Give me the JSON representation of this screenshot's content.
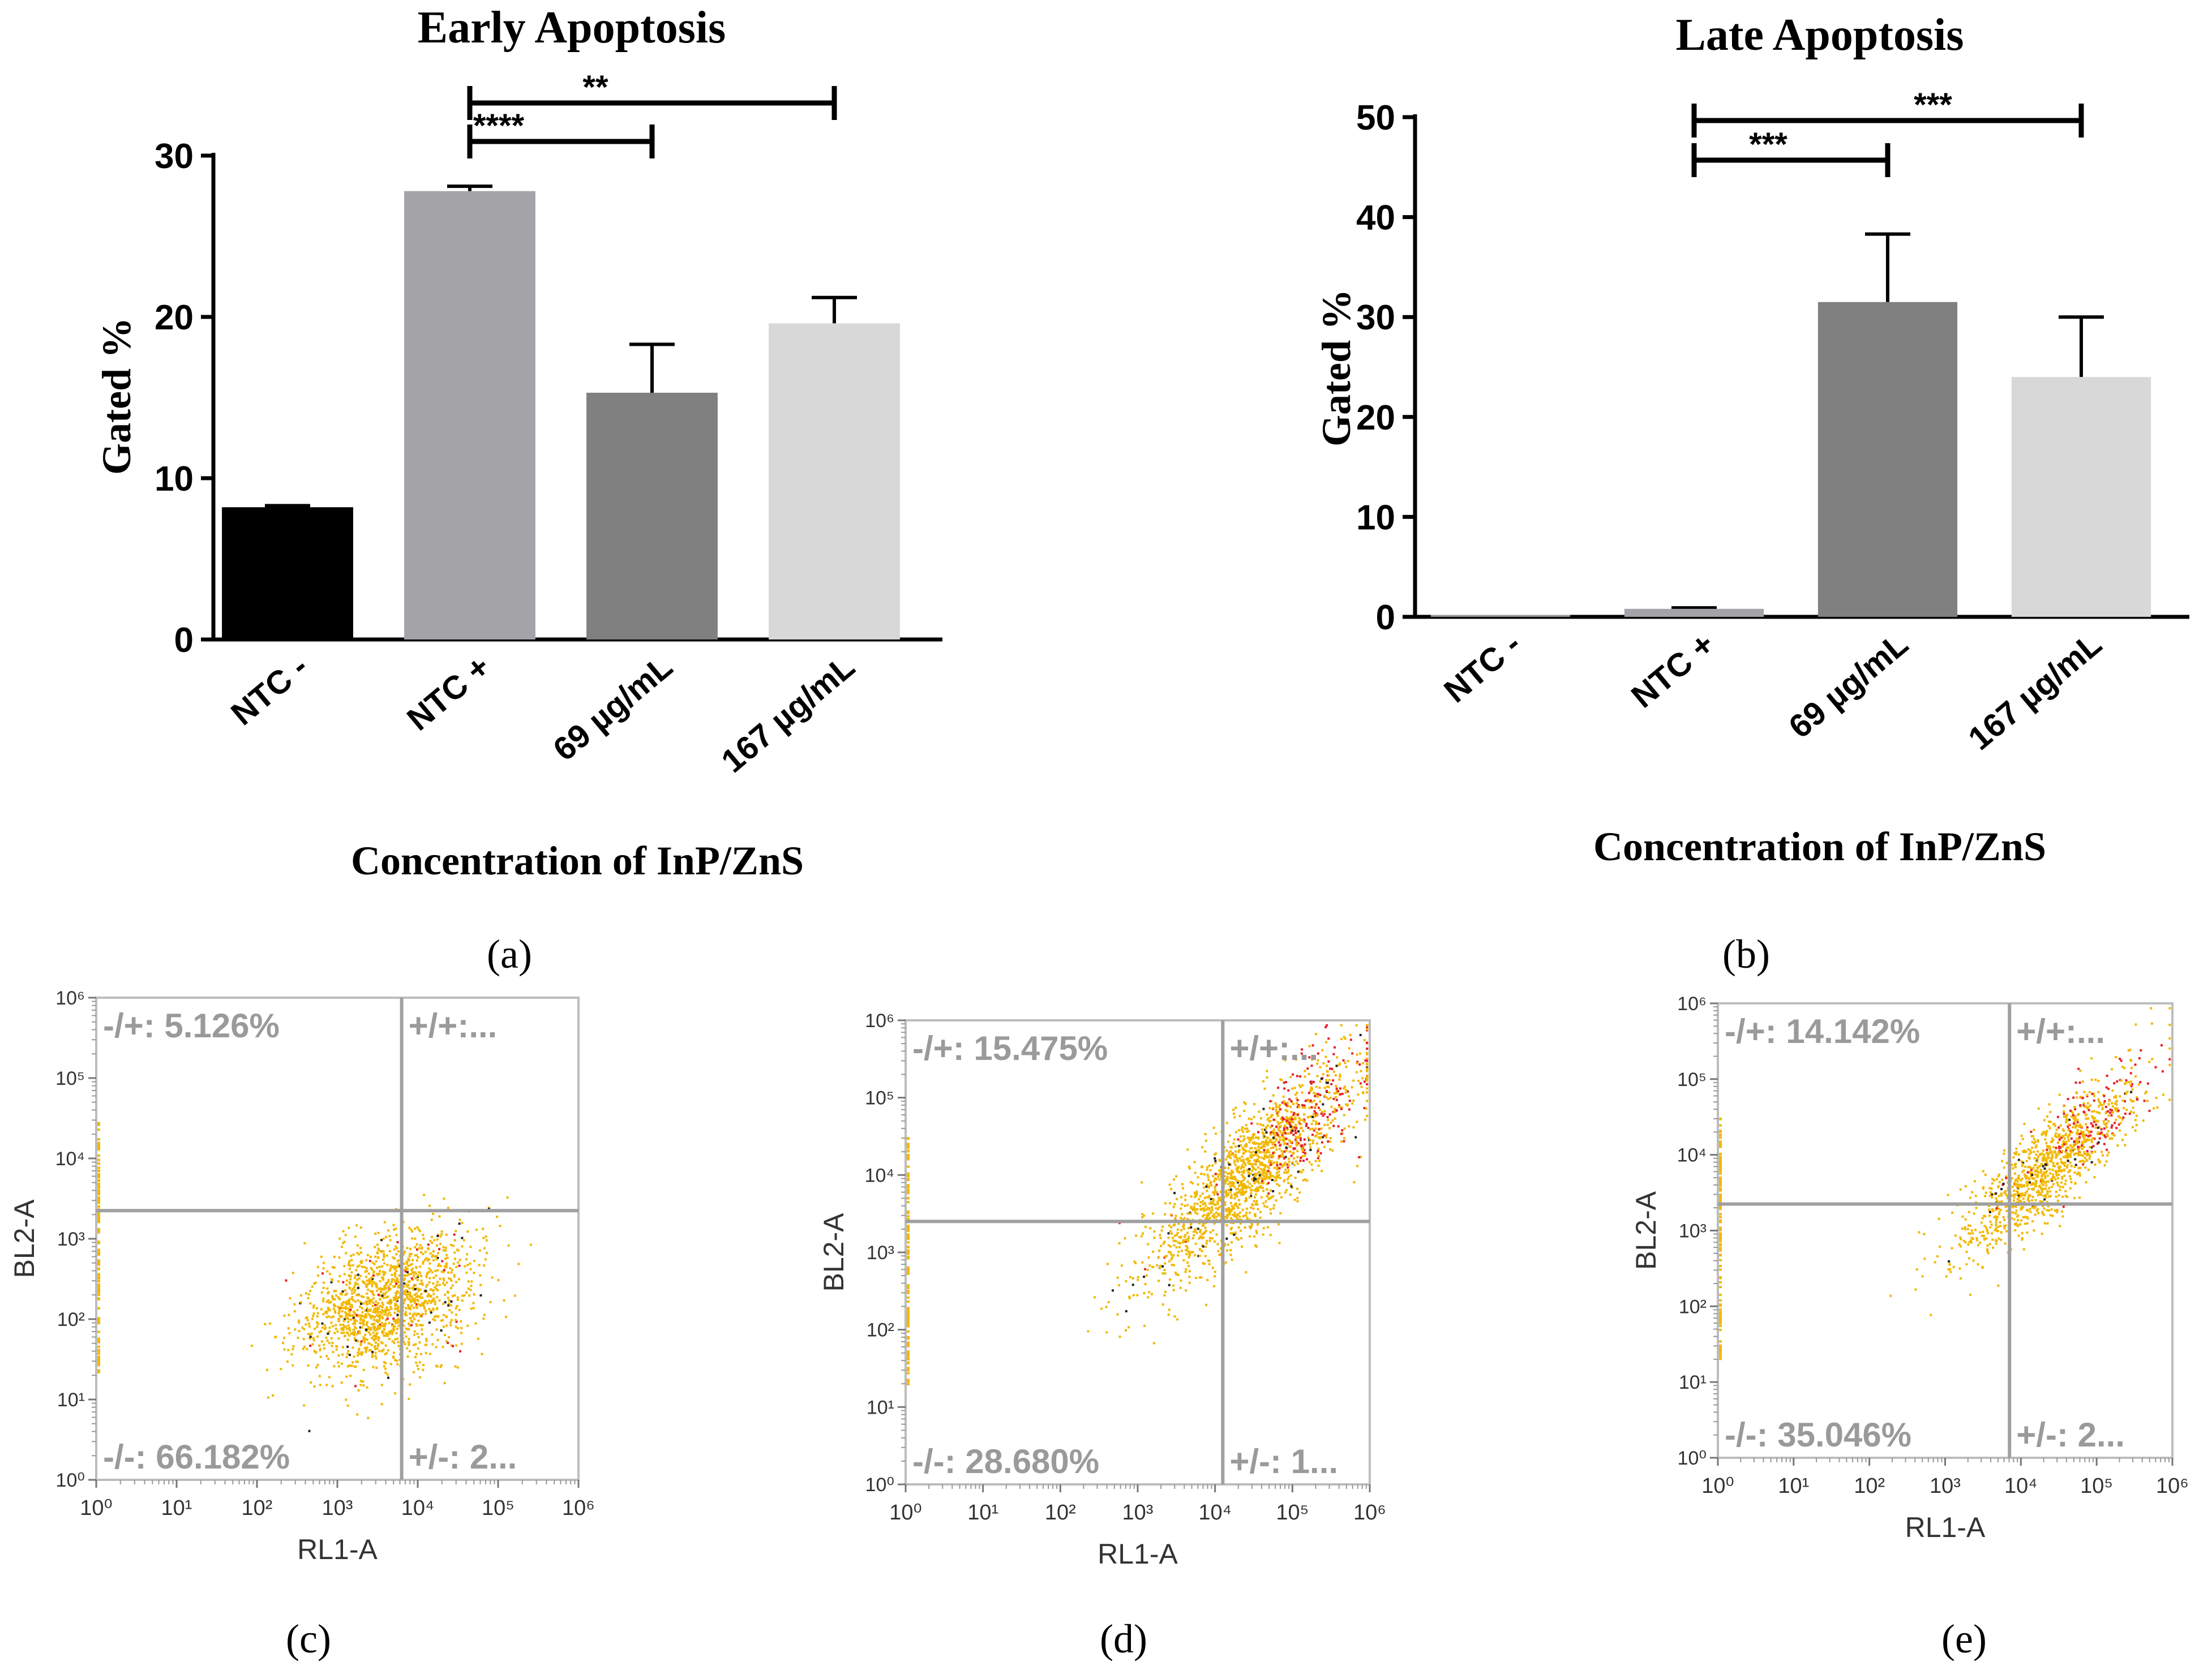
{
  "chart_data": [
    {
      "id": "a",
      "type": "bar",
      "title": "Early Apoptosis",
      "xlabel": "Concentration of InP/ZnS",
      "ylabel": "Gated %",
      "ylim": [
        0,
        30
      ],
      "yticks": [
        0,
        10,
        20,
        30
      ],
      "panel_label": "(a)",
      "categories": [
        "NTC -",
        "NTC +",
        "69 µg/mL",
        "167 µg/mL"
      ],
      "values": [
        8.2,
        27.8,
        15.3,
        19.6
      ],
      "errors": [
        0.1,
        0.3,
        3.0,
        1.6
      ],
      "colors": [
        "#000000",
        "#a4a3a8",
        "#808080",
        "#d8d8d8"
      ],
      "significance": [
        {
          "from": 1,
          "to": 2,
          "label": "****"
        },
        {
          "from": 1,
          "to": 3,
          "label": "**"
        }
      ]
    },
    {
      "id": "b",
      "type": "bar",
      "title": "Late Apoptosis",
      "xlabel": "Concentration of InP/ZnS",
      "ylabel": "Gated %",
      "ylim": [
        0,
        50
      ],
      "yticks": [
        0,
        10,
        20,
        30,
        40,
        50
      ],
      "panel_label": "(b)",
      "categories": [
        "NTC -",
        "NTC +",
        "69 µg/mL",
        "167 µg/mL"
      ],
      "values": [
        0.2,
        0.8,
        31.5,
        24.0
      ],
      "errors": [
        0,
        0.1,
        6.8,
        6.0
      ],
      "colors": [
        "#9a9a9a",
        "#a4a3a8",
        "#808080",
        "#d8d8d8"
      ],
      "significance": [
        {
          "from": 1,
          "to": 2,
          "label": "***"
        },
        {
          "from": 1,
          "to": 3,
          "label": "***"
        }
      ]
    },
    {
      "id": "c",
      "type": "scatter",
      "panel_label": "(c)",
      "xlabel": "RL1-A",
      "ylabel": "BL2-A",
      "xlim": [
        0,
        6
      ],
      "ylim": [
        0,
        6
      ],
      "gate_x": 3.8,
      "gate_y": 3.35,
      "quadrants": {
        "ul": "-/+: 5.126%",
        "ur": "+/+:...",
        "ll": "-/-: 66.182%",
        "lr": "+/-: 2..."
      },
      "cloud": {
        "cx": 3.6,
        "cy": 2.2,
        "sx": 0.55,
        "sy": 0.45,
        "rho": 0.35,
        "n": 1500,
        "seed": 11
      }
    },
    {
      "id": "d",
      "type": "scatter",
      "panel_label": "(d)",
      "xlabel": "RL1-A",
      "ylabel": "BL2-A",
      "xlim": [
        0,
        6
      ],
      "ylim": [
        0,
        6
      ],
      "gate_x": 4.1,
      "gate_y": 3.4,
      "quadrants": {
        "ul": "-/+: 15.475%",
        "ur": "+/+:...",
        "ll": "-/-: 28.680%",
        "lr": "+/-: 1..."
      },
      "cloud": {
        "cx": 4.5,
        "cy": 4.1,
        "sx": 0.7,
        "sy": 0.75,
        "rho": 0.85,
        "n": 1800,
        "seed": 23
      }
    },
    {
      "id": "e",
      "type": "scatter",
      "panel_label": "(e)",
      "xlabel": "RL1-A",
      "ylabel": "BL2-A",
      "xlim": [
        0,
        6
      ],
      "ylim": [
        0,
        6
      ],
      "gate_x": 3.85,
      "gate_y": 3.35,
      "quadrants": {
        "ul": "-/+: 14.142%",
        "ur": "+/+:...",
        "ll": "-/-: 35.046%",
        "lr": "+/-: 2..."
      },
      "cloud": {
        "cx": 4.4,
        "cy": 3.9,
        "sx": 0.6,
        "sy": 0.6,
        "rho": 0.85,
        "n": 1200,
        "seed": 37
      }
    }
  ],
  "colors": {
    "event_main": "#f2b800",
    "event_red": "#e8202a",
    "event_black": "#222222",
    "gate_line": "#a0a0a0"
  }
}
